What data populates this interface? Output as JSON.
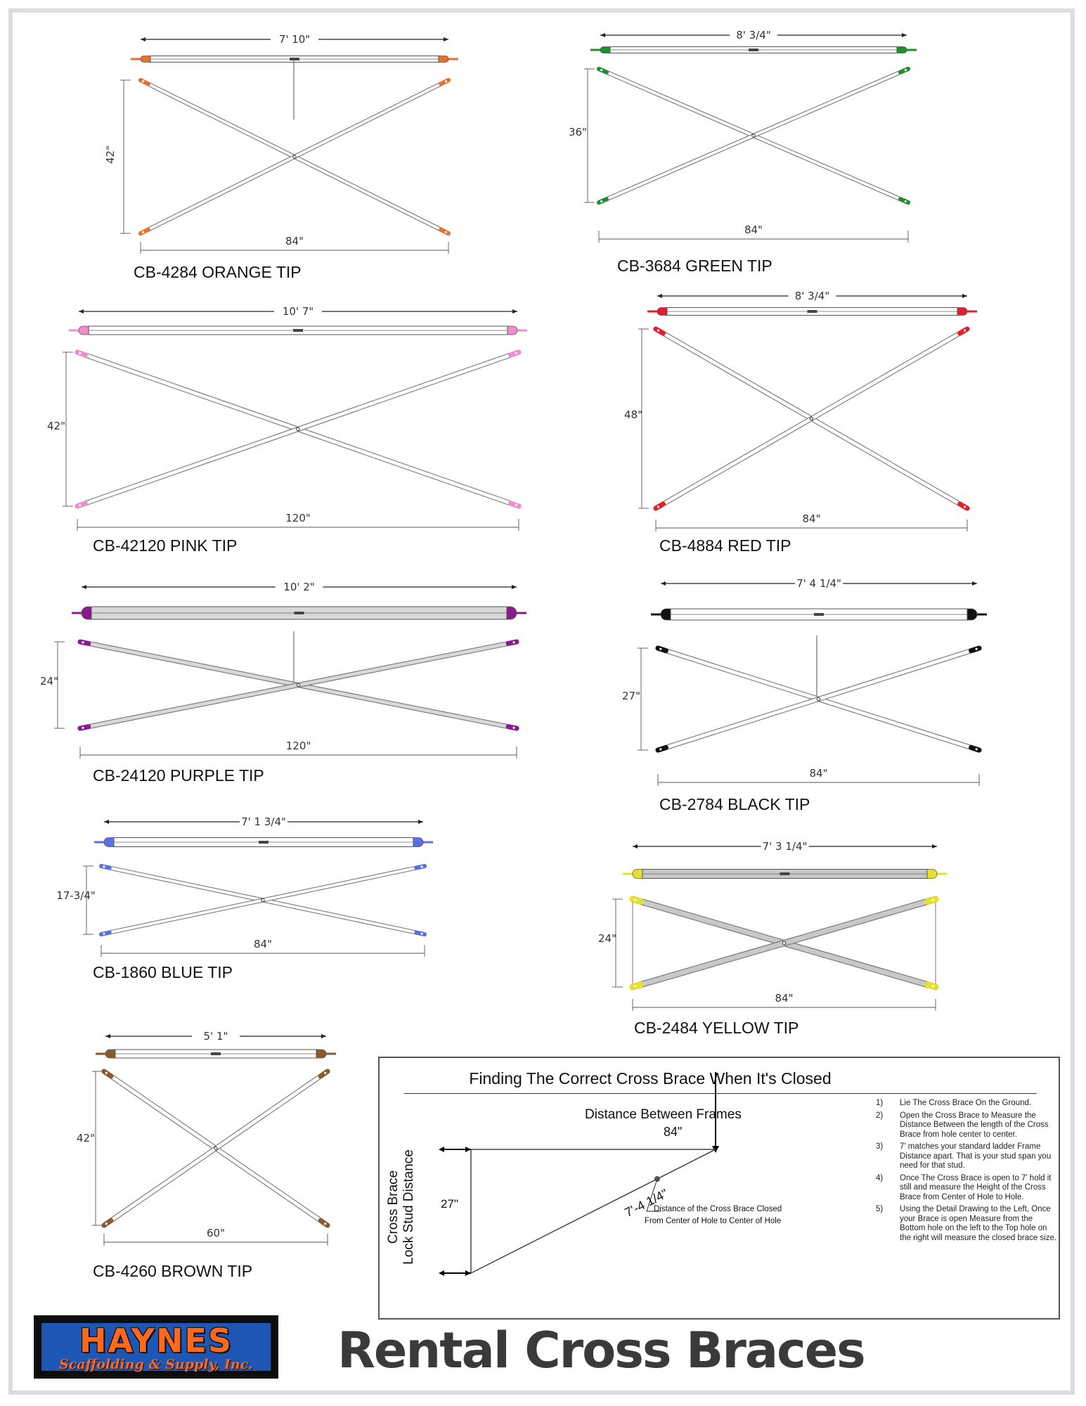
{
  "braces": [
    {
      "model": "CB-4284 ORANGE TIP",
      "tip_color": "#e8702a",
      "closed_length": "7' 10\"",
      "height": "42\"",
      "width": "84\""
    },
    {
      "model": "CB-3684 GREEN TIP",
      "tip_color": "#1f8f2a",
      "closed_length": "8' 3/4\"",
      "height": "36\"",
      "width": "84\""
    },
    {
      "model": "CB-42120 PINK TIP",
      "tip_color": "#f08ccf",
      "closed_length": "10' 7\"",
      "height": "42\"",
      "width": "120\""
    },
    {
      "model": "CB-4884 RED TIP",
      "tip_color": "#e0202a",
      "closed_length": "8' 3/4\"",
      "height": "48\"",
      "width": "84\""
    },
    {
      "model": "CB-24120 PURPLE TIP",
      "tip_color": "#8b1a8f",
      "closed_length": "10' 2\"",
      "height": "24\"",
      "width": "120\""
    },
    {
      "model": "CB-2784 BLACK TIP",
      "tip_color": "#111111",
      "closed_length": "7' 4 1/4\"",
      "height": "27\"",
      "width": "84\""
    },
    {
      "model": "CB-1860 BLUE TIP",
      "tip_color": "#5a6fe0",
      "closed_length": "7' 1 3/4\"",
      "height": "17-3/4\"",
      "width": "84\""
    },
    {
      "model": "CB-2484 YELLOW TIP",
      "tip_color": "#e6e02a",
      "closed_length": "7' 3 1/4\"",
      "height": "24\"",
      "width": "84\""
    },
    {
      "model": "CB-4260 BROWN TIP",
      "tip_color": "#8a5a2b",
      "closed_length": "5' 1\"",
      "height": "42\"",
      "width": "60\""
    }
  ],
  "info": {
    "title": "Finding The Correct Cross Brace When It's Closed",
    "distance_label": "Distance Between Frames",
    "distance_value": "84\"",
    "side_label_line1": "Cross Brace",
    "side_label_line2": "Lock Stud Distance",
    "height_value": "27\"",
    "diagonal_value": "7'-4 1/4\"",
    "note_line1": "Distance of the Cross Brace Closed",
    "note_line2": "From Center of Hole to Center of Hole",
    "steps": [
      {
        "num": "1)",
        "text": "Lie The Cross Brace On the Ground."
      },
      {
        "num": "2)",
        "text": "Open the Cross Brace to Measure the Distance Between the length of the Cross Brace from hole center to center."
      },
      {
        "num": "3)",
        "text": "7' matches your standard ladder Frame Distance apart. That is your stud span you need for that stud."
      },
      {
        "num": "4)",
        "text": "Once The Cross Brace is open to 7' hold it still and measure the Height of the Cross Brace from Center of Hole to Hole."
      },
      {
        "num": "5)",
        "text": "Using the Detail Drawing to the Left, Once your Brace is open Measure from the Bottom hole on the left to the Top hole on the right will measure the closed brace size."
      }
    ]
  },
  "footer": {
    "logo_name": "HAYNES",
    "logo_sub": "Scaffolding & Supply, Inc.",
    "title": "Rental Cross Braces"
  },
  "colors": {
    "accent_orange": "#ff6a1a",
    "logo_blue": "#1d56b4",
    "title_gray": "#3a3a3a"
  }
}
